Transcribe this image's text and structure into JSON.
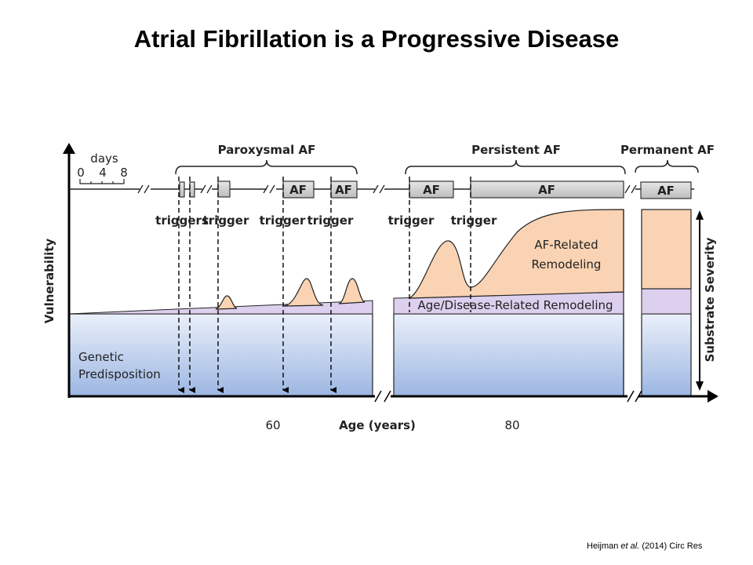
{
  "title": "Atrial Fibrillation is a Progressive Disease",
  "diagram": {
    "y_axis_label": "Vulnerability",
    "x_axis_label": "Age (years)",
    "x_ticks": [
      "60",
      "80"
    ],
    "right_axis_label": "Substrate Severity",
    "days_scale": {
      "label": "days",
      "ticks": [
        "0",
        "4",
        "8"
      ]
    },
    "phases": [
      "Paroxysmal AF",
      "Persistent AF",
      "Permanent AF"
    ],
    "episode_label": "AF",
    "trigger_labels": [
      "triggers",
      "trigger",
      "trigger",
      "trigger",
      "trigger",
      "trigger"
    ],
    "regions": {
      "genetic": [
        "Genetic",
        "Predisposition"
      ],
      "af_related": [
        "AF-Related",
        "Remodeling"
      ],
      "age_related": "Age/Disease-Related Remodeling"
    },
    "colors": {
      "blue_top": "#eaf0fa",
      "blue_bottom": "#9cb6e2",
      "purple": "#ddd0ee",
      "orange": "#f9d3b3",
      "box": "#d0d0d0"
    }
  },
  "citation": {
    "author": "Heijman",
    "etal": "et al.",
    "rest": "(2014) Circ Res"
  }
}
